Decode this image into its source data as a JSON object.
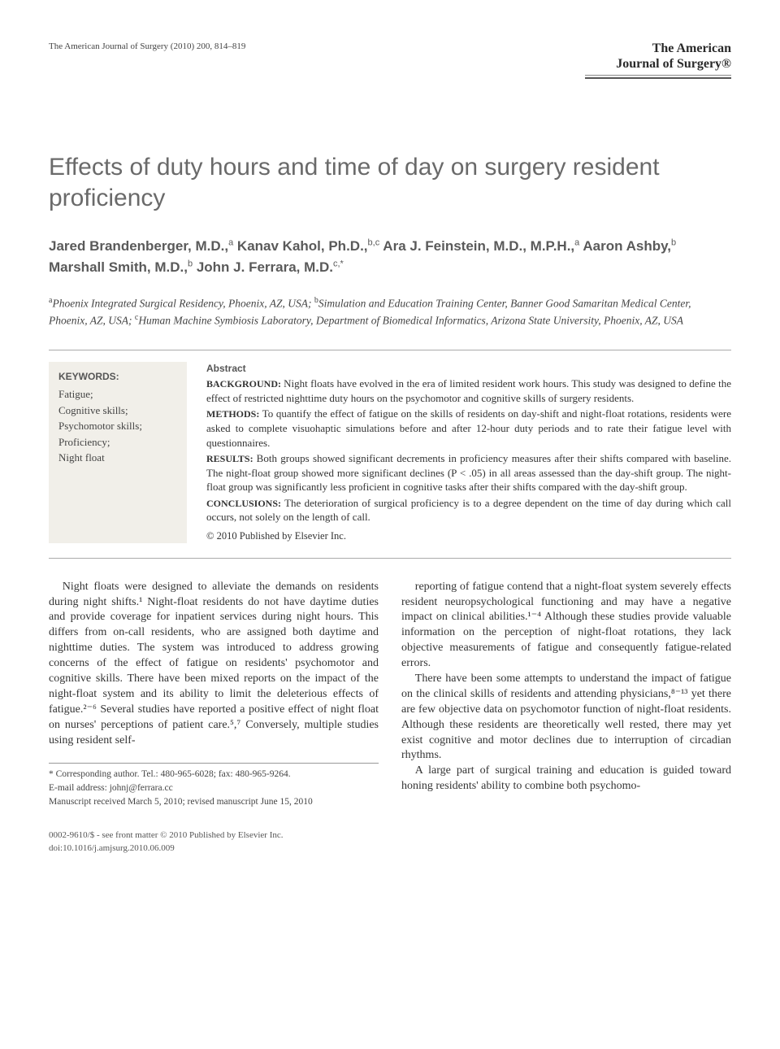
{
  "running_head": "The American Journal of Surgery (2010) 200, 814–819",
  "journal_brand_line1": "The American",
  "journal_brand_line2": "Journal of Surgery®",
  "title": "Effects of duty hours and time of day on surgery resident proficiency",
  "authors_html": "Jared Brandenberger, M.D.,<sup>a</sup> Kanav Kahol, Ph.D.,<sup>b,c</sup> Ara J. Feinstein, M.D., M.P.H.,<sup>a</sup> Aaron Ashby,<sup>b</sup> Marshall Smith, M.D.,<sup>b</sup> John J. Ferrara, M.D.<sup>c,*</sup>",
  "affiliations_html": "<sup>a</sup>Phoenix Integrated Surgical Residency, Phoenix, AZ, USA; <sup>b</sup>Simulation and Education Training Center, Banner Good Samaritan Medical Center, Phoenix, AZ, USA; <sup>c</sup>Human Machine Symbiosis Laboratory, Department of Biomedical Informatics, Arizona State University, Phoenix, AZ, USA",
  "keywords": {
    "heading": "KEYWORDS:",
    "items": [
      "Fatigue;",
      "Cognitive skills;",
      "Psychomotor skills;",
      "Proficiency;",
      "Night float"
    ]
  },
  "abstract": {
    "heading": "Abstract",
    "sections": [
      {
        "label": "BACKGROUND:",
        "text": "Night floats have evolved in the era of limited resident work hours. This study was designed to define the effect of restricted nighttime duty hours on the psychomotor and cognitive skills of surgery residents."
      },
      {
        "label": "METHODS:",
        "text": "To quantify the effect of fatigue on the skills of residents on day-shift and night-float rotations, residents were asked to complete visuohaptic simulations before and after 12-hour duty periods and to rate their fatigue level with questionnaires."
      },
      {
        "label": "RESULTS:",
        "text": "Both groups showed significant decrements in proficiency measures after their shifts compared with baseline. The night-float group showed more significant declines (P < .05) in all areas assessed than the day-shift group. The night-float group was significantly less proficient in cognitive tasks after their shifts compared with the day-shift group."
      },
      {
        "label": "CONCLUSIONS:",
        "text": "The deterioration of surgical proficiency is to a degree dependent on the time of day during which call occurs, not solely on the length of call."
      }
    ],
    "copyright": "© 2010 Published by Elsevier Inc."
  },
  "body": {
    "p1": "Night floats were designed to alleviate the demands on residents during night shifts.¹ Night-float residents do not have daytime duties and provide coverage for inpatient services during night hours. This differs from on-call residents, who are assigned both daytime and nighttime duties. The system was introduced to address growing concerns of the effect of fatigue on residents' psychomotor and cognitive skills. There have been mixed reports on the impact of the night-float system and its ability to limit the deleterious effects of fatigue.²⁻⁶ Several studies have reported a positive effect of night float on nurses' perceptions of patient care.⁵,⁷ Conversely, multiple studies using resident self-",
    "p2": "reporting of fatigue contend that a night-float system severely effects resident neuropsychological functioning and may have a negative impact on clinical abilities.¹⁻⁴ Although these studies provide valuable information on the perception of night-float rotations, they lack objective measurements of fatigue and consequently fatigue-related errors.",
    "p3": "There have been some attempts to understand the impact of fatigue on the clinical skills of residents and attending physicians,⁸⁻¹³ yet there are few objective data on psychomotor function of night-float residents. Although these residents are theoretically well rested, there may yet exist cognitive and motor declines due to interruption of circadian rhythms.",
    "p4": "A large part of surgical training and education is guided toward honing residents' ability to combine both psychomo-"
  },
  "correspondence": {
    "line1": "* Corresponding author. Tel.: 480-965-6028; fax: 480-965-9264.",
    "line2": "E-mail address: johnj@ferrara.cc",
    "line3": "Manuscript received March 5, 2010; revised manuscript June 15, 2010"
  },
  "footer": {
    "line1": "0002-9610/$ - see front matter © 2010 Published by Elsevier Inc.",
    "line2": "doi:10.1016/j.amjsurg.2010.06.009"
  }
}
